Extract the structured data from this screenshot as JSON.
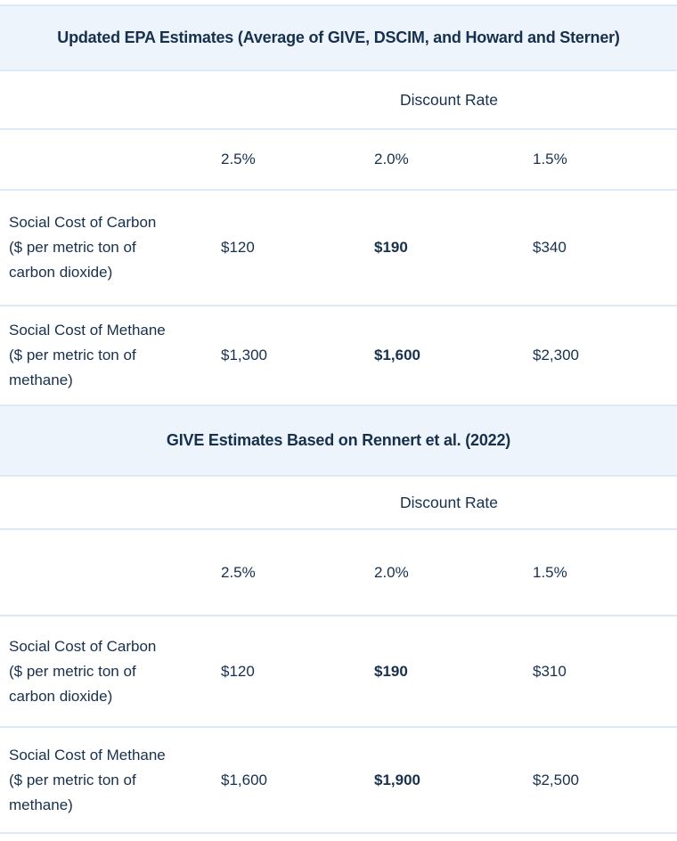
{
  "colors": {
    "band_background": "#edf4fc",
    "divider": "#dbe9f8",
    "text_navy": "#17304d",
    "page_background": "#ffffff"
  },
  "tables": [
    {
      "title": "Updated EPA Estimates (Average of GIVE, DSCIM, and Howard and Sterner)",
      "discount_rate_label": "Discount Rate",
      "rate_headers": [
        "2.5%",
        "2.0%",
        "1.5%"
      ],
      "rows": [
        {
          "label_lines": [
            "Social Cost of Carbon",
            "($ per metric ton of",
            "carbon dioxide)"
          ],
          "values": [
            "$120",
            "$190",
            "$340"
          ],
          "bold_value_index": 1
        },
        {
          "label_lines": [
            "Social Cost of Methane",
            "($ per metric ton of",
            "methane)"
          ],
          "values": [
            "$1,300",
            "$1,600",
            "$2,300"
          ],
          "bold_value_index": 1
        }
      ]
    },
    {
      "title": "GIVE Estimates Based on Rennert et al. (2022)",
      "discount_rate_label": "Discount Rate",
      "rate_headers": [
        "2.5%",
        "2.0%",
        "1.5%"
      ],
      "rows": [
        {
          "label_lines": [
            "Social Cost of Carbon",
            "($ per metric ton of",
            "carbon dioxide)"
          ],
          "values": [
            "$120",
            "$190",
            "$310"
          ],
          "bold_value_index": 1
        },
        {
          "label_lines": [
            "Social Cost of Methane",
            "($ per metric ton of",
            "methane)"
          ],
          "values": [
            "$1,600",
            "$1,900",
            "$2,500"
          ],
          "bold_value_index": 1
        }
      ]
    }
  ]
}
